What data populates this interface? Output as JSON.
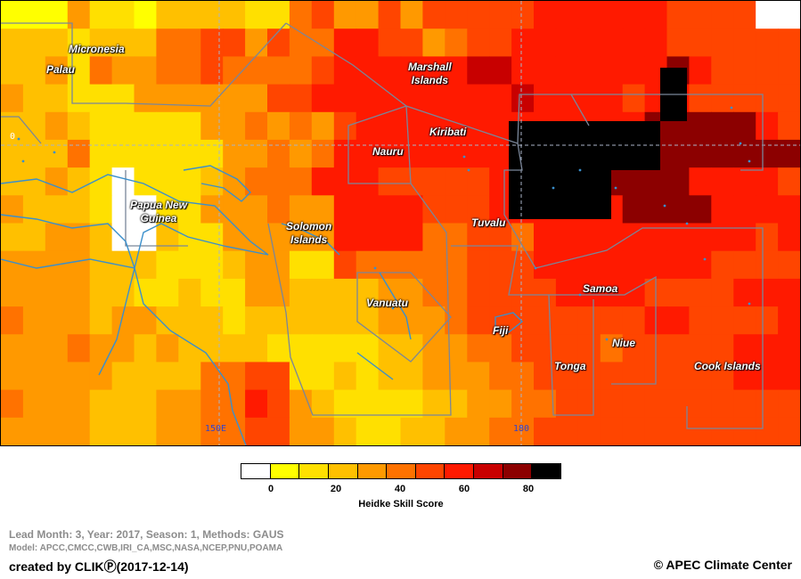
{
  "map": {
    "lon_labels": [
      "150E",
      "180"
    ],
    "lat_labels": [
      "0"
    ],
    "regions": [
      {
        "name": "Micronesia"
      },
      {
        "name": "Palau"
      },
      {
        "name": "Marshall\nIslands"
      },
      {
        "name": "Kiribati"
      },
      {
        "name": "Nauru"
      },
      {
        "name": "Papua New\nGuinea"
      },
      {
        "name": "Solomon\nIslands"
      },
      {
        "name": "Tuvalu"
      },
      {
        "name": "Samoa"
      },
      {
        "name": "Vanuatu"
      },
      {
        "name": "Fiji"
      },
      {
        "name": "Niue"
      },
      {
        "name": "Tonga"
      },
      {
        "name": "Cook Islands"
      }
    ],
    "colors": {
      "white": "#ffffff",
      "c0": "#ffff00",
      "c10": "#ffe000",
      "c20": "#ffc000",
      "c30": "#ff9900",
      "c40": "#ff7200",
      "c50": "#ff4500",
      "c60": "#ff1a00",
      "c70": "#c80000",
      "c80": "#8c0000",
      "c90": "#000000"
    }
  },
  "legend": {
    "title": "Heidke Skill Score",
    "ticks": [
      "0",
      "20",
      "40",
      "60",
      "80"
    ],
    "colors": [
      "#ffffff",
      "#ffff00",
      "#ffe000",
      "#ffc000",
      "#ff9900",
      "#ff7200",
      "#ff4500",
      "#ff1a00",
      "#c80000",
      "#8c0000",
      "#000000"
    ]
  },
  "footer": {
    "info_line1": "Lead Month: 3, Year: 2017, Season: 1, Methods: GAUS",
    "info_line2": "Model: APCC,CMCC,CWB,IRI_CA,MSC,NASA,NCEP,PNU,POAMA",
    "created_by": "created by CLIKⓅ(2017-12-14)",
    "copyright": "© APEC Climate Center"
  }
}
